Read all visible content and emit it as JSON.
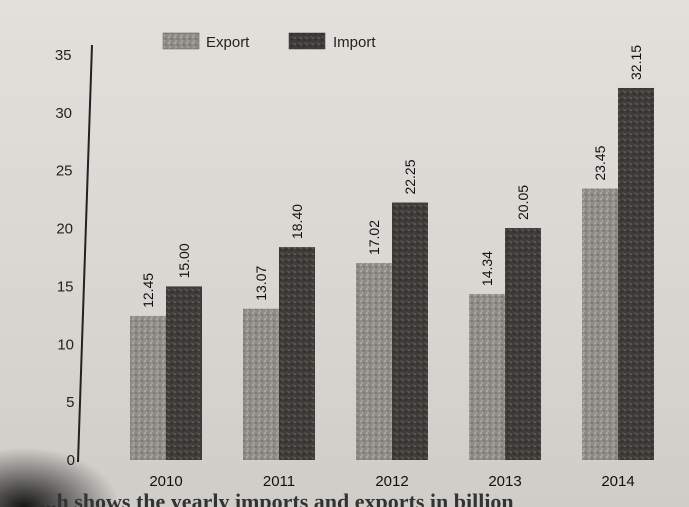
{
  "chart_data": {
    "type": "bar",
    "categories": [
      "2010",
      "2011",
      "2012",
      "2013",
      "2014"
    ],
    "series": [
      {
        "name": "Export",
        "values": [
          12.45,
          13.07,
          17.02,
          14.34,
          23.45
        ],
        "labels": [
          "12.45",
          "13.07",
          "17.02",
          "14.34",
          "23.45"
        ]
      },
      {
        "name": "Import",
        "values": [
          15.0,
          18.4,
          22.25,
          20.05,
          32.15
        ],
        "labels": [
          "15.00",
          "18.40",
          "22.25",
          "20.05",
          "32.15"
        ]
      }
    ],
    "ylim": [
      0,
      35
    ],
    "yticks": [
      "0",
      "5",
      "10",
      "15",
      "20",
      "25",
      "30",
      "35"
    ],
    "legend_position": "top-center",
    "grid": false,
    "colors": {
      "export": "#8f8c87",
      "import": "#3e3c39"
    }
  },
  "footer_text": "...h shows the yearly imports and exports in billion"
}
